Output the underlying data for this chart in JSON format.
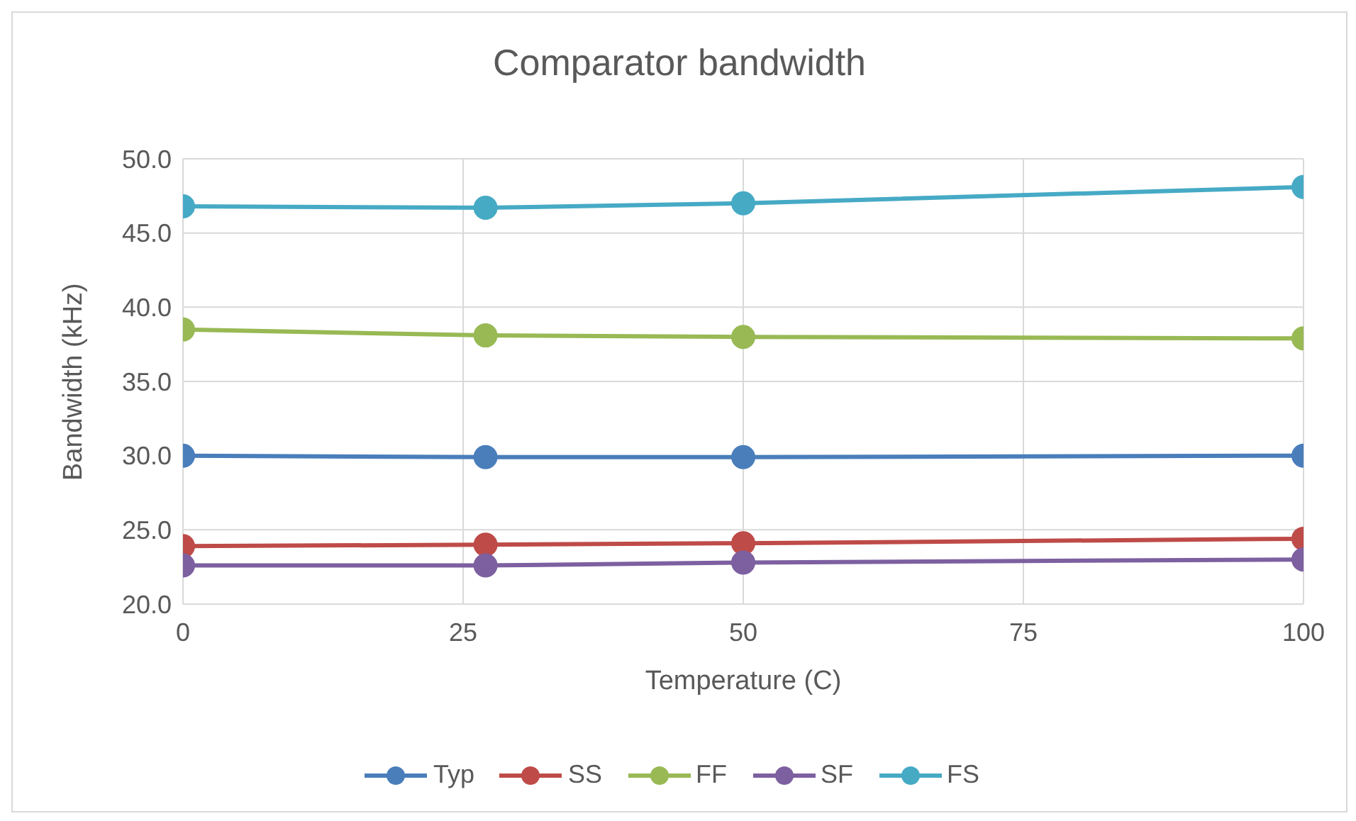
{
  "chart_data": {
    "type": "line",
    "title": "Comparator bandwidth",
    "xlabel": "Temperature (C)",
    "ylabel": "Bandwidth (kHz)",
    "x": [
      0,
      27,
      50,
      100
    ],
    "series": [
      {
        "name": "Typ",
        "color": "#4a7ebb",
        "values": [
          30.0,
          29.9,
          29.9,
          30.0
        ]
      },
      {
        "name": "SS",
        "color": "#be4b48",
        "values": [
          23.9,
          24.0,
          24.1,
          24.4
        ]
      },
      {
        "name": "FF",
        "color": "#98b954",
        "values": [
          38.5,
          38.1,
          38.0,
          37.9
        ]
      },
      {
        "name": "SF",
        "color": "#7d60a0",
        "values": [
          22.6,
          22.6,
          22.8,
          23.0
        ]
      },
      {
        "name": "FS",
        "color": "#46aac5",
        "values": [
          46.8,
          46.7,
          47.0,
          48.1
        ]
      }
    ],
    "xlim": [
      0,
      100
    ],
    "xticks": [
      0,
      25,
      50,
      75,
      100
    ],
    "ylim": [
      20,
      50
    ],
    "yticks": [
      {
        "value": 20,
        "label": "20.0"
      },
      {
        "value": 25,
        "label": "25.0"
      },
      {
        "value": 30,
        "label": "30.0"
      },
      {
        "value": 35,
        "label": "35.0"
      },
      {
        "value": 40,
        "label": "40.0"
      },
      {
        "value": 45,
        "label": "45.0"
      },
      {
        "value": 50,
        "label": "50.0"
      }
    ],
    "grid": true,
    "legend": "bottom",
    "marker": "circle",
    "line_style": "solid"
  }
}
